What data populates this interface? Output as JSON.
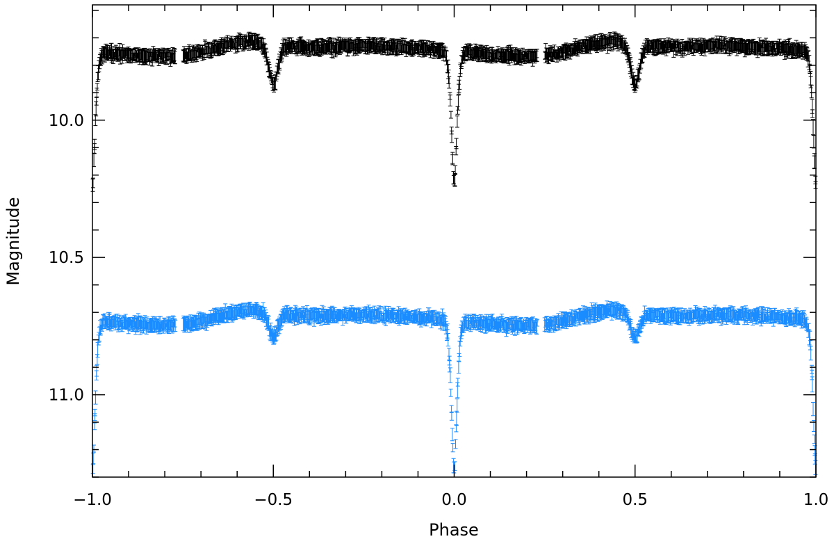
{
  "chart_data": {
    "type": "scatter",
    "title": "",
    "xlabel": "Phase",
    "ylabel": "Magnitude",
    "xlim": [
      -1.0,
      1.0
    ],
    "ylim": [
      11.3,
      9.58
    ],
    "y_inverted": true,
    "x_major_ticks": [
      -1.0,
      -0.5,
      0.0,
      0.5,
      1.0
    ],
    "x_tick_labels": [
      "−1.0",
      "−0.5",
      "0.0",
      "0.5",
      "1.0"
    ],
    "x_minor_step": 0.1,
    "y_major_ticks": [
      10.0,
      10.5,
      11.0
    ],
    "y_tick_labels": [
      "10.0",
      "10.5",
      "11.0"
    ],
    "y_minor_step": 0.1,
    "phase_gaps": [
      [
        -0.77,
        -0.75
      ],
      [
        0.23,
        0.25
      ]
    ],
    "series": [
      {
        "name": "upper light curve",
        "color": "#000000",
        "style": "points with error bars",
        "baseline_magnitude": 9.75,
        "primary_minimum": {
          "phase": 0.0,
          "magnitude": 10.24
        },
        "secondary_minimum": {
          "phase": 0.5,
          "magnitude": 9.9
        },
        "typical_error": 0.02
      },
      {
        "name": "lower light curve",
        "color": "#1a8cff",
        "style": "points with error bars",
        "baseline_magnitude": 10.73,
        "primary_minimum": {
          "phase": 0.0,
          "magnitude": 11.28
        },
        "secondary_minimum": {
          "phase": 0.5,
          "magnitude": 10.82
        },
        "typical_error": 0.02
      }
    ]
  }
}
